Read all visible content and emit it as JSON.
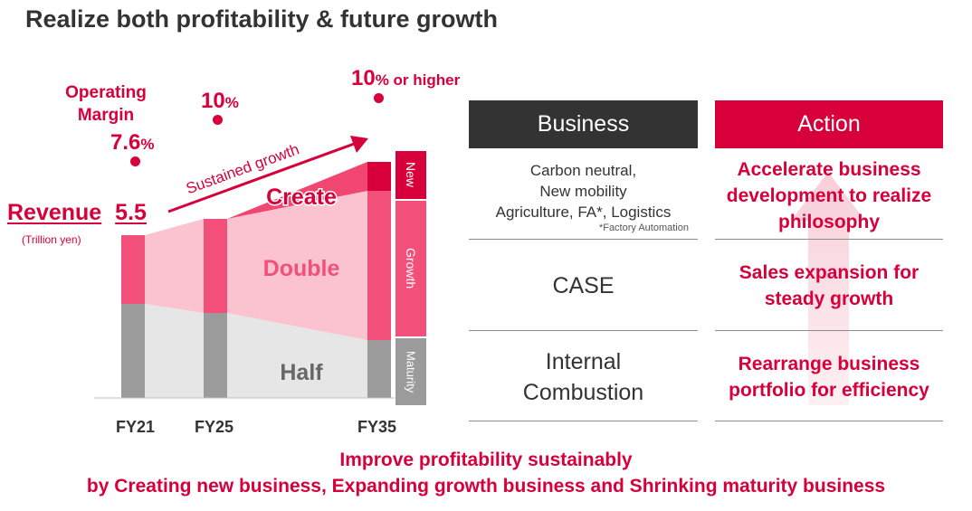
{
  "title": "Realize both profitability & future growth",
  "operating_margin": {
    "label_line1": "Operating",
    "label_line2": "Margin",
    "fy21": {
      "value": "7.6",
      "unit": "%"
    },
    "fy25": {
      "value": "10",
      "unit": "%"
    },
    "fy35": {
      "value": "10",
      "unit": "% or higher"
    }
  },
  "revenue": {
    "label": "Revenue",
    "value": "5.5",
    "unit": "(Trillion yen)"
  },
  "arrow_label": "Sustained growth",
  "segments": {
    "create": "Create",
    "double": "Double",
    "half": "Half"
  },
  "side_tags": {
    "new": "New",
    "growth": "Growth",
    "maturity": "Maturity"
  },
  "years": [
    "FY21",
    "FY25",
    "FY35"
  ],
  "table": {
    "business_header": "Business",
    "action_header": "Action",
    "rows": [
      {
        "business_lines": [
          "Carbon neutral,",
          "New mobility",
          "Agriculture, FA*, Logistics"
        ],
        "business_note": "*Factory Automation",
        "action_lines": [
          "Accelerate business",
          "development to realize",
          "philosophy"
        ]
      },
      {
        "business_lines": [
          "CASE"
        ],
        "action_lines": [
          "Sales expansion for",
          "steady growth"
        ]
      },
      {
        "business_lines": [
          "Internal",
          "Combustion"
        ],
        "action_lines": [
          "Rearrange business",
          "portfolio for efficiency"
        ]
      }
    ]
  },
  "footer": {
    "line1": "Improve profitability sustainably",
    "line2": "by Creating new business, Expanding growth business and Shrinking maturity business"
  },
  "colors": {
    "accent": "#d7003a",
    "growth_bar": "#f2507a",
    "growth_band": "#fbc3d0",
    "maturity_bar": "#9b9b9b",
    "maturity_band": "#e6e6e6",
    "business_header": "#333333"
  }
}
